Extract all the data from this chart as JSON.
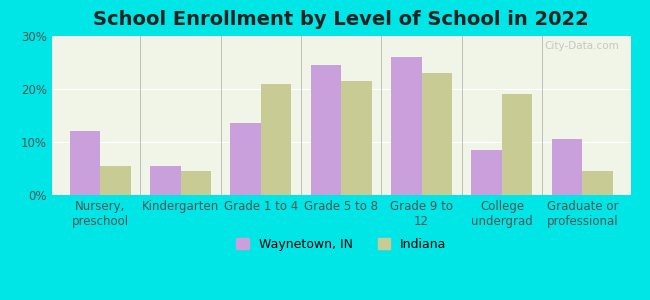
{
  "title": "School Enrollment by Level of School in 2022",
  "categories": [
    "Nursery,\npreschool",
    "Kindergarten",
    "Grade 1 to 4",
    "Grade 5 to 8",
    "Grade 9 to\n12",
    "College\nundergrad",
    "Graduate or\nprofessional"
  ],
  "waynetown": [
    12.0,
    5.5,
    13.5,
    24.5,
    26.0,
    8.5,
    10.5
  ],
  "indiana": [
    5.5,
    4.5,
    21.0,
    21.5,
    23.0,
    19.0,
    4.5
  ],
  "waynetown_color": "#c9a0dc",
  "indiana_color": "#c8cc94",
  "background_outer": "#00e5e5",
  "background_plot": "#f0f5e8",
  "ylim": [
    0,
    30
  ],
  "yticks": [
    0,
    10,
    20,
    30
  ],
  "ytick_labels": [
    "0%",
    "10%",
    "20%",
    "30%"
  ],
  "bar_width": 0.38,
  "title_fontsize": 14,
  "tick_fontsize": 8.5,
  "legend_fontsize": 9,
  "watermark": "City-Data.com"
}
